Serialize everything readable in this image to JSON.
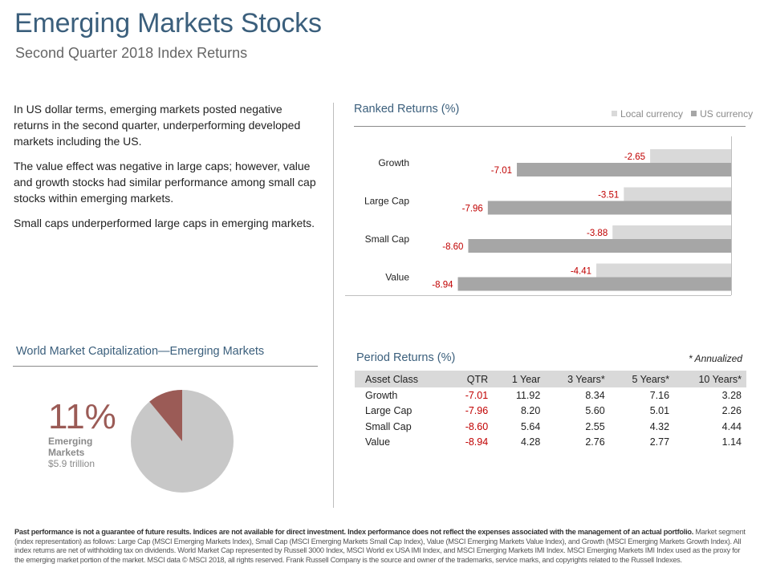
{
  "header": {
    "title": "Emerging Markets Stocks",
    "subtitle": "Second Quarter 2018 Index Returns"
  },
  "intro": {
    "p1": "In US dollar terms, emerging markets posted negative returns in the second quarter, underperforming developed markets including the US.",
    "p2": "The value effect was negative in large caps; however, value and growth stocks had similar performance among small cap stocks within emerging markets.",
    "p3": "Small caps underperformed large caps in emerging markets."
  },
  "ranked": {
    "heading": "Ranked Returns (%)",
    "legend_local": "Local currency",
    "legend_us": "US currency"
  },
  "chart_data": {
    "type": "bar",
    "orientation": "horizontal",
    "title": "Ranked Returns (%)",
    "categories": [
      "Growth",
      "Large Cap",
      "Small Cap",
      "Value"
    ],
    "series": [
      {
        "name": "Local currency",
        "values": [
          -2.65,
          -3.51,
          -3.88,
          -4.41
        ],
        "color": "#d9d9d9",
        "label_color": "#c00000"
      },
      {
        "name": "US currency",
        "values": [
          -7.01,
          -7.96,
          -8.6,
          -8.94
        ],
        "color": "#a6a6a6",
        "label_color": "#c00000"
      }
    ],
    "xlim": [
      -9.4,
      0
    ],
    "legend_position": "top-right",
    "grid": false
  },
  "world_cap": {
    "heading": "World Market Capitalization—Emerging Markets",
    "percent": "11%",
    "label": "Emerging Markets",
    "value": "$5.9 trillion",
    "share": 0.11,
    "slice_color": "#9b5b56",
    "rest_color": "#c8c8c8"
  },
  "period": {
    "heading": "Period Returns (%)",
    "annotation": "* Annualized",
    "columns": [
      "Asset Class",
      "QTR",
      "1 Year",
      "3 Years*",
      "5 Years*",
      "10 Years*"
    ],
    "rows": [
      [
        "Growth",
        "-7.01",
        "11.92",
        "8.34",
        "7.16",
        "3.28"
      ],
      [
        "Large Cap",
        "-7.96",
        "8.20",
        "5.60",
        "5.01",
        "2.26"
      ],
      [
        "Small Cap",
        "-8.60",
        "5.64",
        "2.55",
        "4.32",
        "4.44"
      ],
      [
        "Value",
        "-8.94",
        "4.28",
        "2.76",
        "2.77",
        "1.14"
      ]
    ]
  },
  "footer": {
    "bold": "Past performance is not a guarantee of future results. Indices are not available for direct investment. Index performance does not reflect the expenses associated with the management of an actual portfolio.",
    "text": "Market segment (index representation) as follows: Large Cap (MSCI Emerging Markets Index), Small Cap (MSCI Emerging Markets Small Cap Index), Value (MSCI Emerging Markets Value Index), and Growth (MSCI Emerging Markets Growth Index). All index returns are net of withholding tax on dividends. World Market Cap represented by Russell 3000 Index, MSCI World ex USA IMI Index, and MSCI Emerging Markets IMI Index. MSCI Emerging Markets IMI Index used as the proxy for the emerging market portion of the market. MSCI data © MSCI 2018, all rights reserved. Frank Russell Company is the source and owner of the trademarks, service marks, and copyrights related to the Russell Indexes."
  }
}
